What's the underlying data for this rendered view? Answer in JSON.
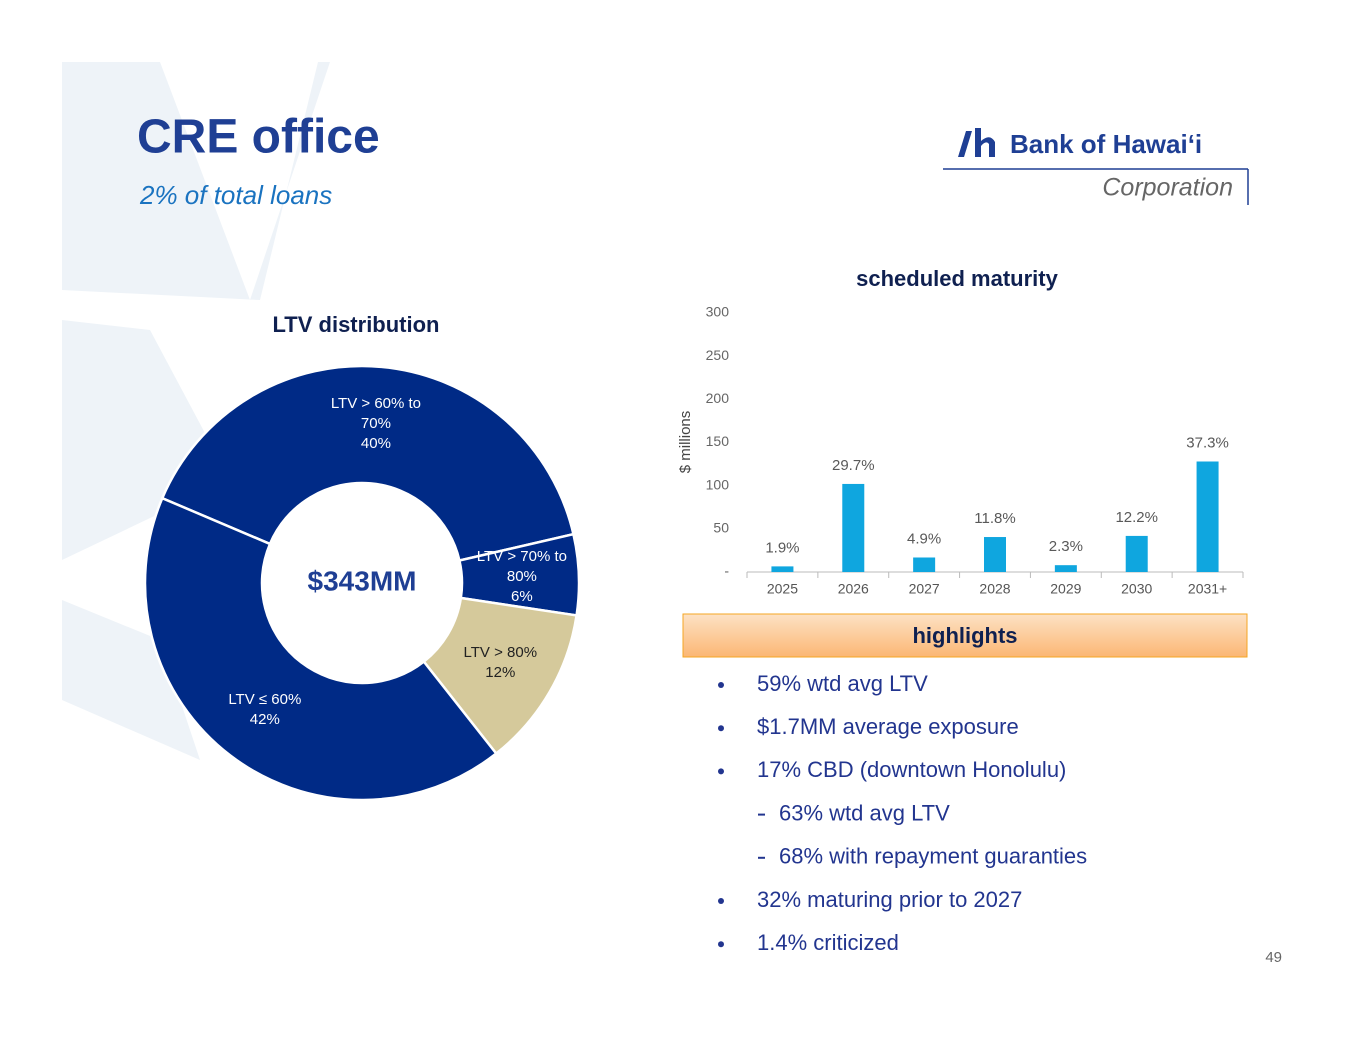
{
  "header": {
    "title": "CRE office",
    "subtitle": "2% of total loans",
    "logo_name": "Bank of Hawai‘i",
    "logo_sub": "Corporation"
  },
  "chart_data": [
    {
      "type": "pie",
      "title": "LTV distribution",
      "center_label": "$343MM",
      "categories": [
        "LTV > 60% to 70%",
        "LTV > 70% to 80%",
        "LTV > 80%",
        "LTV ≤ 60%"
      ],
      "values": [
        40,
        6,
        12,
        42
      ],
      "value_labels": [
        "40%",
        "6%",
        "12%",
        "42%"
      ],
      "colors": [
        "#002a86",
        "#002a86",
        "#d5c99b",
        "#002a86"
      ],
      "label_colors": [
        "#ffffff",
        "#ffffff",
        "#222222",
        "#ffffff"
      ]
    },
    {
      "type": "bar",
      "title": "scheduled maturity",
      "y_label": "$ millions",
      "categories": [
        "2025",
        "2026",
        "2027",
        "2028",
        "2029",
        "2030",
        "2031+"
      ],
      "values": [
        6.5,
        102,
        16.8,
        40.5,
        7.9,
        41.8,
        128
      ],
      "data_labels": [
        "1.9%",
        "29.7%",
        "4.9%",
        "11.8%",
        "2.3%",
        "12.2%",
        "37.3%"
      ],
      "color": "#0fa6df",
      "ylim": [
        0,
        300
      ],
      "yticks": [
        {
          "value": 0,
          "label": "-"
        },
        50,
        100,
        150,
        200,
        250,
        300
      ]
    }
  ],
  "highlights": {
    "title": "highlights",
    "items": [
      {
        "text": "59% wtd avg LTV",
        "level": 1
      },
      {
        "text": "$1.7MM average exposure",
        "level": 1
      },
      {
        "text": "17% CBD (downtown Honolulu)",
        "level": 1
      },
      {
        "text": "63% wtd avg LTV",
        "level": 2
      },
      {
        "text": "68% with repayment guaranties",
        "level": 2
      },
      {
        "text": "32% maturing prior to 2027",
        "level": 1
      },
      {
        "text": "1.4% criticized",
        "level": 1
      }
    ]
  },
  "page_number": "49"
}
